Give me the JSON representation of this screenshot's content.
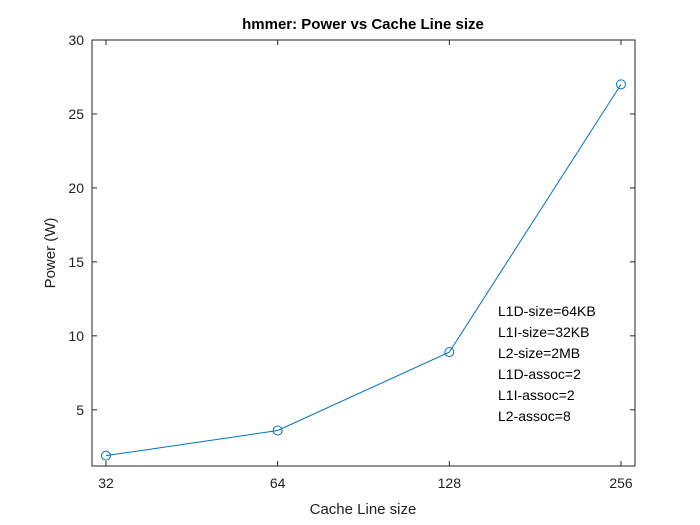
{
  "chart_data": {
    "type": "line",
    "title": "hmmer: Power vs Cache Line size",
    "xlabel": "Cache Line size",
    "ylabel": "Power (W)",
    "x_scale": "log2",
    "x": [
      32,
      64,
      128,
      256
    ],
    "xticks": [
      "32",
      "64",
      "128",
      "256"
    ],
    "ylim": [
      1.2,
      30
    ],
    "yticks": [
      5,
      10,
      15,
      20,
      25,
      30
    ],
    "series": [
      {
        "values": [
          1.9,
          3.6,
          8.9,
          27.0
        ],
        "color": "#0072BD",
        "marker": "circle"
      }
    ],
    "annotation": [
      "L1D-size=64KB",
      "L1I-size=32KB",
      "L2-size=2MB",
      "L1D-assoc=2",
      "L1I-assoc=2",
      "L2-assoc=8"
    ],
    "grid": false
  }
}
